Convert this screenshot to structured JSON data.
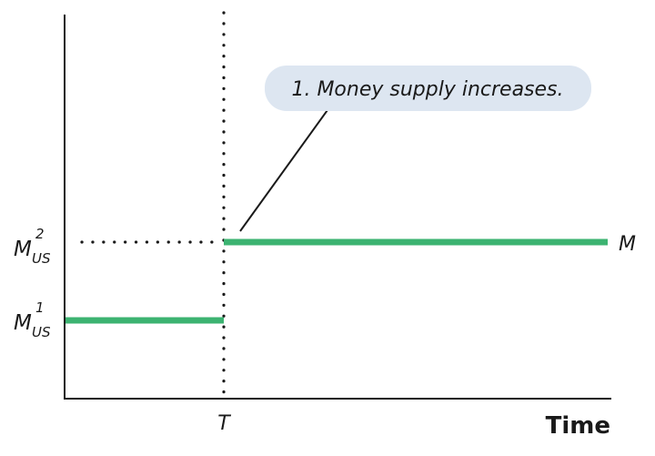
{
  "chart_data": {
    "type": "line",
    "xlabel": "Time",
    "x_marker": "T",
    "series": [
      {
        "name": "M",
        "segments": [
          {
            "x_from": "start",
            "x_to": "T",
            "level": "M_US^1"
          },
          {
            "x_from": "T",
            "x_to": "end",
            "level": "M_US^2"
          }
        ]
      }
    ],
    "levels": [
      {
        "key": "M_US^1",
        "base": "M",
        "subscript": "US",
        "superscript": "1"
      },
      {
        "key": "M_US^2",
        "base": "M",
        "subscript": "US",
        "superscript": "2"
      }
    ],
    "annotation": "1. Money supply increases.",
    "grid": false,
    "legend": "none"
  },
  "colors": {
    "series": "#3cb371",
    "callout_fill": "#dde6f1",
    "ink": "#1a1a1a"
  }
}
